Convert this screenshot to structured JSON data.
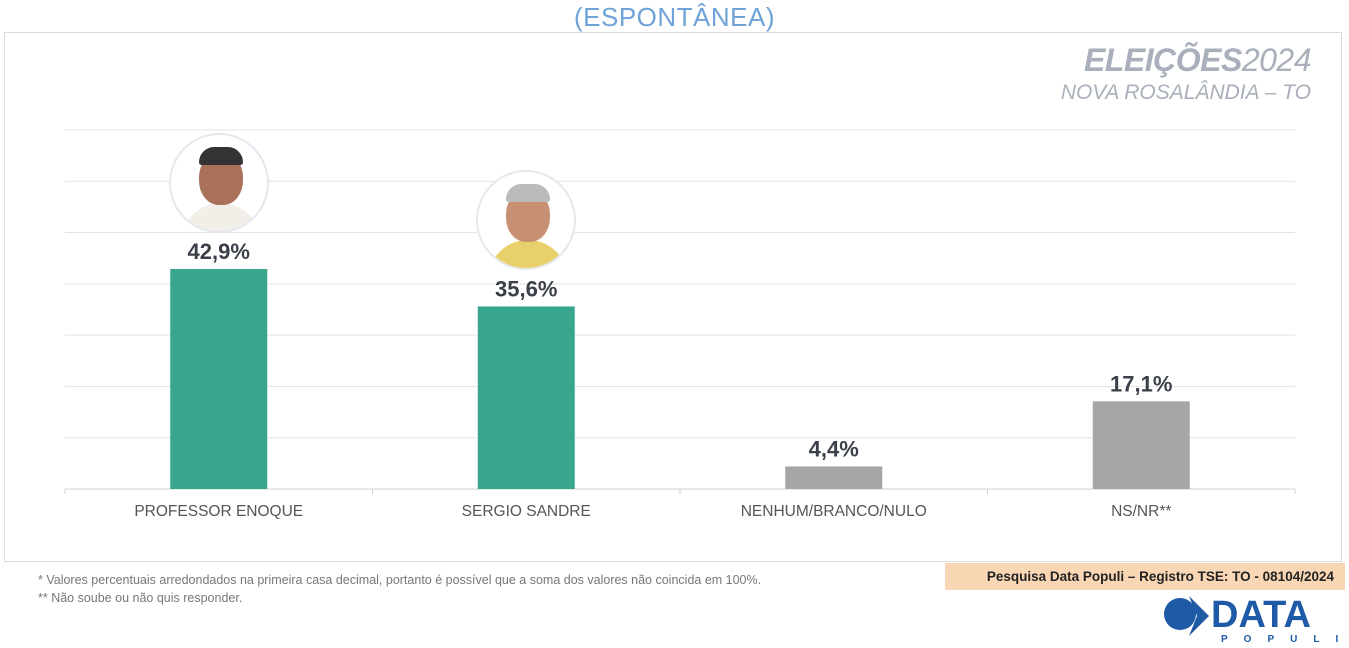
{
  "header": {
    "subtitle": "(ESPONTÂNEA)",
    "brand_bold": "ELEIÇÕES",
    "brand_year": "2024",
    "location": "NOVA ROSALÂNDIA – TO"
  },
  "chart_data": {
    "type": "bar",
    "categories": [
      "PROFESSOR ENOQUE",
      "SERGIO SANDRE",
      "NENHUM/BRANCO/NULO",
      "NS/NR**"
    ],
    "values": [
      42.9,
      35.6,
      4.4,
      17.1
    ],
    "labels": [
      "42,9%",
      "35,6%",
      "4,4%",
      "17,1%"
    ],
    "colors": [
      "#38a68d",
      "#38a68d",
      "#a6a6a6",
      "#a6a6a6"
    ],
    "has_photo": [
      true,
      true,
      false,
      false
    ],
    "ylim": [
      0,
      70
    ],
    "grid": true,
    "title": "(ESPONTÂNEA)",
    "xlabel": "",
    "ylabel": ""
  },
  "footer": {
    "note1": "*  Valores percentuais arredondados na primeira casa decimal, portanto é possível que a soma dos valores não coincida em 100%.",
    "note2": "** Não soube ou não quis responder.",
    "registro": "Pesquisa Data Populi – Registro TSE: TO - 08104/2024",
    "logo_main": "DATA",
    "logo_sub": "POPULI"
  }
}
